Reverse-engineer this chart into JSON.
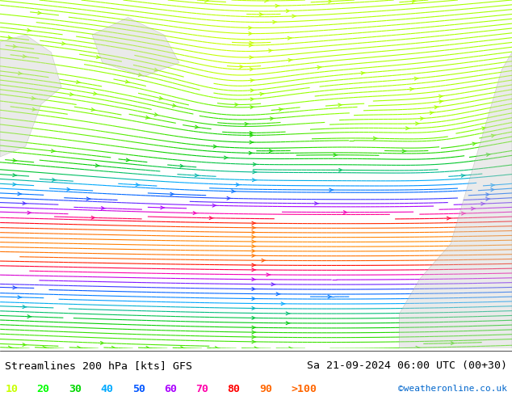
{
  "title_left": "Streamlines 200 hPa [kts] GFS",
  "title_right": "Sa 21-09-2024 06:00 UTC (00+30)",
  "credit": "©weatheronline.co.uk",
  "legend_values": [
    "10",
    "20",
    "30",
    "40",
    "50",
    "60",
    "70",
    "80",
    "90",
    ">100"
  ],
  "legend_colors": [
    "#c8ff00",
    "#00ff00",
    "#00d700",
    "#00aaff",
    "#0055ff",
    "#aa00ff",
    "#ff00aa",
    "#ff0000",
    "#ff6600",
    "#ff6600"
  ],
  "background_color": "#e8ffe8",
  "land_color": "#d0ffd0",
  "text_color": "#000000",
  "fig_width": 6.34,
  "fig_height": 4.9,
  "dpi": 100
}
